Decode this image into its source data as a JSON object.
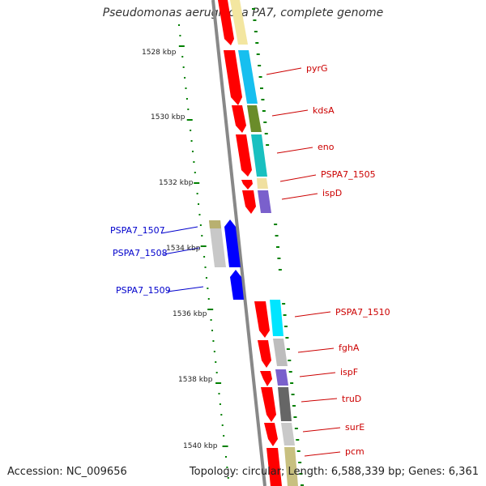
{
  "title": "Pseudomonas aeruginosa PA7, complete genome",
  "footer": {
    "accession": "Accession: NC_009656",
    "topology": "Topology: circular; Length: 6,588,339 bp; Genes: 6,361"
  },
  "colors": {
    "forward_gene": "#ff0000",
    "reverse_gene": "#0000ff",
    "backbone": "#888888",
    "tick": "#008000",
    "label_forward": "#cc0000",
    "label_reverse": "#0000cc"
  },
  "scale_labels": [
    "1528 kbp",
    "1530 kbp",
    "1532 kbp",
    "1534 kbp",
    "1536 kbp",
    "1538 kbp",
    "1540 kbp"
  ],
  "gene_labels": [
    {
      "text": "pyrG",
      "strand": "forward"
    },
    {
      "text": "kdsA",
      "strand": "forward"
    },
    {
      "text": "eno",
      "strand": "forward"
    },
    {
      "text": "PSPA7_1505",
      "strand": "forward"
    },
    {
      "text": "ispD",
      "strand": "forward"
    },
    {
      "text": "PSPA7_1507",
      "strand": "reverse"
    },
    {
      "text": "PSPA7_1508",
      "strand": "reverse"
    },
    {
      "text": "PSPA7_1509",
      "strand": "reverse"
    },
    {
      "text": "PSPA7_1510",
      "strand": "forward"
    },
    {
      "text": "fghA",
      "strand": "forward"
    },
    {
      "text": "ispF",
      "strand": "forward"
    },
    {
      "text": "truD",
      "strand": "forward"
    },
    {
      "text": "surE",
      "strand": "forward"
    },
    {
      "text": "pcm",
      "strand": "forward"
    }
  ]
}
